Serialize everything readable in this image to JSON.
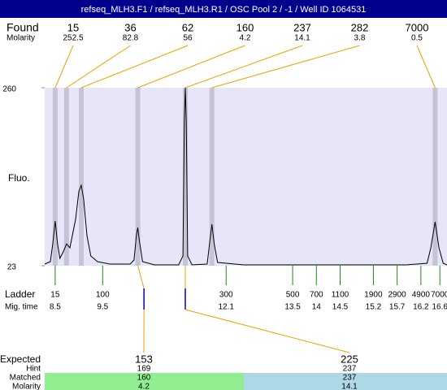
{
  "chart_data": {
    "type": "electropherogram",
    "title": "refseq_MLH3.F1 / refseq_MLH3.R1 / OSC Pool 2 / -1 / Well ID 1064531",
    "y_label": "Fluo.",
    "xlim": [
      8.28,
      16.75
    ],
    "ylim": [
      23,
      260
    ],
    "yticks": [
      23,
      260
    ],
    "color": "#000000",
    "x": [
      8.28,
      8.4,
      8.45,
      8.5,
      8.55,
      8.6,
      8.67,
      8.74,
      8.81,
      8.93,
      9.0,
      9.05,
      9.1,
      9.17,
      9.25,
      9.39,
      9.65,
      10.08,
      10.16,
      10.21,
      10.24,
      10.27,
      10.34,
      10.59,
      11.1,
      11.19,
      11.22,
      11.24,
      11.26,
      11.29,
      11.38,
      11.7,
      11.75,
      11.8,
      11.85,
      11.92,
      12.47,
      15.9,
      16.33,
      16.41,
      16.5,
      16.58,
      16.67,
      16.75
    ],
    "values": [
      25.2,
      28.4,
      52,
      82.5,
      52,
      32.7,
      41.4,
      52,
      46.8,
      84.7,
      122.5,
      130,
      111.7,
      63,
      36,
      28.4,
      25.2,
      25.2,
      30.6,
      63,
      73.9,
      57.6,
      28.4,
      24.1,
      24.1,
      36,
      214.5,
      260,
      214.5,
      36,
      24.1,
      25.2,
      52,
      78.2,
      52,
      27.3,
      24.1,
      24.1,
      26.2,
      46.8,
      81.4,
      46.8,
      26.2,
      24.1
    ],
    "found": {
      "label": "Found",
      "molarity_label": "Molarity",
      "sizes": [
        15,
        36,
        62,
        160,
        237,
        282,
        7000
      ],
      "molarity": [
        252.5,
        82.8,
        56,
        4.2,
        14.1,
        3.8,
        0.5
      ],
      "times": [
        8.5,
        8.74,
        9.05,
        10.24,
        11.24,
        11.8,
        16.5
      ]
    },
    "ladder": {
      "label": "Ladder",
      "time_label": "Mig. time",
      "sizes": [
        15,
        100,
        300,
        500,
        700,
        1100,
        1900,
        2900,
        4900,
        7000
      ],
      "times": [
        8.5,
        9.5,
        12.1,
        13.5,
        14,
        14.5,
        15.2,
        15.7,
        16.2,
        16.6
      ]
    },
    "expected": {
      "label": "Expected",
      "hint_label": "Hint",
      "matched_label": "Matched",
      "molarity_label": "Molarity",
      "sizes": [
        153,
        225
      ],
      "hint": [
        169,
        237
      ],
      "matched": [
        160,
        237
      ],
      "molarity": [
        4.2,
        14.1
      ],
      "times": [
        10.37,
        11.24
      ]
    }
  }
}
